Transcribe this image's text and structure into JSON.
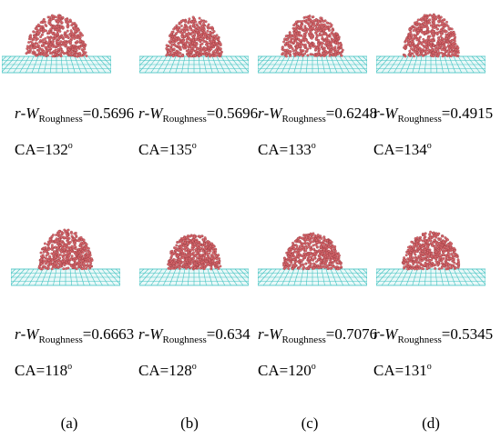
{
  "rows": [
    {
      "panels": [
        {
          "r": "r",
          "w": "W",
          "sub": "Roughness",
          "value": "=0.5696",
          "ca": "CA=132",
          "deg": "o"
        },
        {
          "r": "r",
          "w": "W",
          "sub": "Roughness",
          "value": "=0.5696",
          "ca": "CA=135",
          "deg": "o"
        },
        {
          "r": "r",
          "w": "W",
          "sub": "Roughness",
          "value": "=0.6248",
          "ca": "CA=133",
          "deg": "o"
        },
        {
          "r": "r",
          "w": "W",
          "sub": "Roughness",
          "value": "=0.4915",
          "ca": "CA=134",
          "deg": "o"
        }
      ]
    },
    {
      "panels": [
        {
          "r": "r",
          "w": "W",
          "sub": "Roughness",
          "value": "=0.6663",
          "ca": "CA=118",
          "deg": "o"
        },
        {
          "r": "r",
          "w": "W",
          "sub": "Roughness",
          "value": "=0.634",
          "ca": "CA=128",
          "deg": "o"
        },
        {
          "r": "r",
          "w": "W",
          "sub": "Roughness",
          "value": "=0.7076",
          "ca": "CA=120",
          "deg": "o"
        },
        {
          "r": "r",
          "w": "W",
          "sub": "Roughness",
          "value": "=0.5345",
          "ca": "CA=131",
          "deg": "o"
        }
      ]
    }
  ],
  "column_labels": [
    "(a)",
    "(b)",
    "(c)",
    "(d)"
  ],
  "colors": {
    "droplet": "#d9676d",
    "substrate": "#3fc2c0"
  }
}
